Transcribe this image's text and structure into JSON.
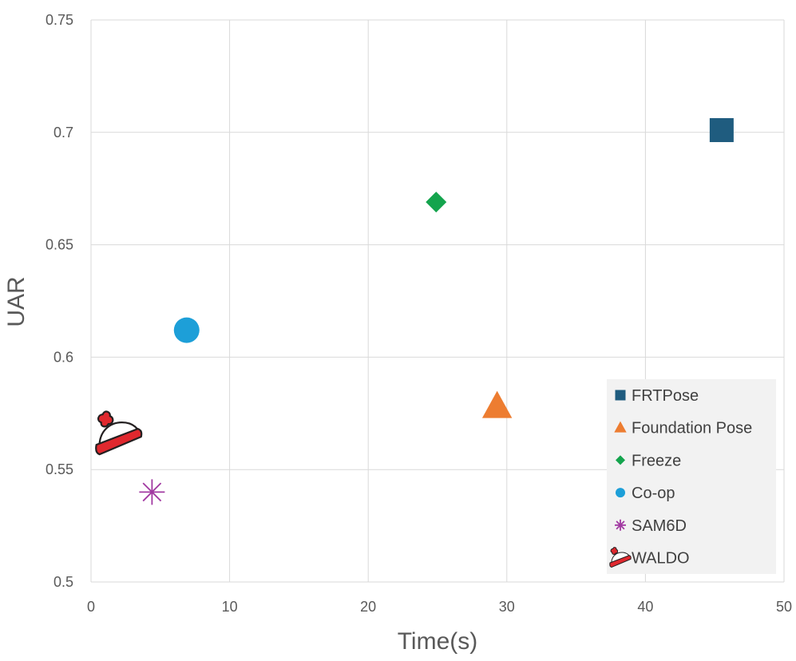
{
  "chart_data": {
    "type": "scatter",
    "title": "",
    "xlabel": "Time(s)",
    "ylabel": "UAR",
    "xlim": [
      0,
      50
    ],
    "ylim": [
      0.5,
      0.75
    ],
    "xticks": [
      0,
      10,
      20,
      30,
      40,
      50
    ],
    "xtick_labels": [
      "0",
      "10",
      "20",
      "30",
      "40",
      "50"
    ],
    "yticks": [
      0.5,
      0.55,
      0.6,
      0.65,
      0.7,
      0.75
    ],
    "ytick_labels": [
      "0.5",
      "0.55",
      "0.6",
      "0.65",
      "0.7",
      "0.75"
    ],
    "grid": true,
    "legend_position": "bottom-right",
    "series": [
      {
        "name": "FRTPose",
        "marker": "square",
        "color": "#1f5c7f",
        "x": [
          45.5
        ],
        "y": [
          0.701
        ]
      },
      {
        "name": "Foundation Pose",
        "marker": "triangle",
        "color": "#ed7d31",
        "x": [
          29.3
        ],
        "y": [
          0.578
        ]
      },
      {
        "name": "Freeze",
        "marker": "diamond",
        "color": "#14a44d",
        "x": [
          24.9
        ],
        "y": [
          0.669
        ]
      },
      {
        "name": "Co-op",
        "marker": "circle",
        "color": "#1d9fd8",
        "x": [
          6.9
        ],
        "y": [
          0.612
        ]
      },
      {
        "name": "SAM6D",
        "marker": "star",
        "color": "#a23aa2",
        "x": [
          4.4
        ],
        "y": [
          0.54
        ]
      },
      {
        "name": "WALDO",
        "marker": "hat-icon",
        "color": "#e0282e",
        "x": [
          2.0
        ],
        "y": [
          0.566
        ]
      }
    ]
  }
}
